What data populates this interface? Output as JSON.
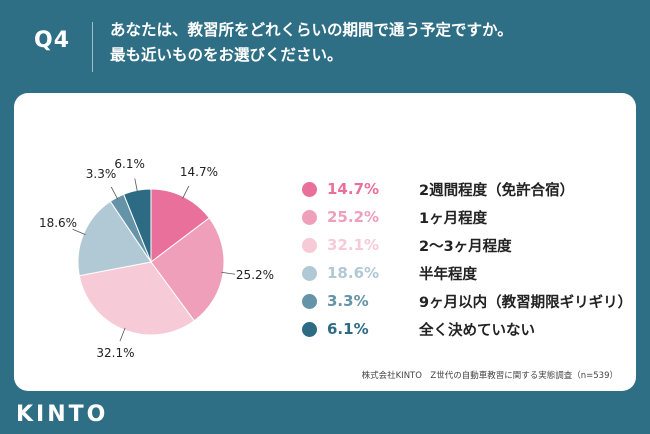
{
  "question": {
    "number": "Q4",
    "text_line1": "あなたは、教習所をどれくらいの期間で通う予定ですか。",
    "text_line2": "最も近いものをお選びください。"
  },
  "chart_data": {
    "type": "pie",
    "slices": [
      {
        "label": "2週間程度（免許合宿）",
        "value": 14.7,
        "display": "14.7%",
        "color": "#e8709a"
      },
      {
        "label": "1ヶ月程度",
        "value": 25.2,
        "display": "25.2%",
        "color": "#f09fba"
      },
      {
        "label": "2〜3ヶ月程度",
        "value": 32.1,
        "display": "32.1%",
        "color": "#f7cad8"
      },
      {
        "label": "半年程度",
        "value": 18.6,
        "display": "18.6%",
        "color": "#b1c9d4"
      },
      {
        "label": "9ヶ月以内（教習期限ギリギリ）",
        "value": 3.3,
        "display": "3.3%",
        "color": "#6593a7"
      },
      {
        "label": "全く決めていない",
        "value": 6.1,
        "display": "6.1%",
        "color": "#2d6b84"
      }
    ]
  },
  "source": "株式会社KINTO　Z世代の自動車教習に関する実態調査（n=539）",
  "logo": "KINTO"
}
